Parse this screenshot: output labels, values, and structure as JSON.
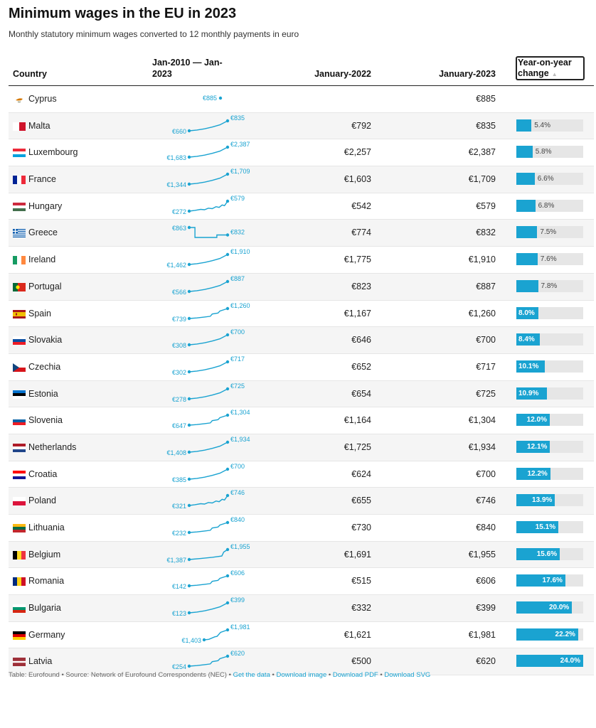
{
  "header": {
    "title": "Minimum wages in the EU in 2023",
    "subtitle": "Monthly statutory minimum wages converted to 12 monthly payments in euro"
  },
  "columns": {
    "country": "Country",
    "spark": "Jan-2010 — Jan-2023",
    "jan2022": "January-2022",
    "jan2023": "January-2023",
    "yoy": "Year-on-year change",
    "yoy_sort_icon": "sort-arrow-up-icon"
  },
  "colors": {
    "accent": "#1aa3d1",
    "track": "#e6e6e6",
    "row_alt": "#f5f5f5"
  },
  "chart_data": {
    "type": "table",
    "title": "Minimum wages in the EU in 2023",
    "subtitle": "Monthly statutory minimum wages converted to 12 monthly payments in euro",
    "yoy_scale_max": 24.0,
    "rows": [
      {
        "country": "Cyprus",
        "flag": "cyprus-flag-icon",
        "spark_start": "",
        "spark_end": "€885",
        "spark_shape": "single",
        "jan2022": "",
        "jan2023": "€885",
        "yoy": null,
        "yoy_label": ""
      },
      {
        "country": "Malta",
        "flag": "malta-flag-icon",
        "spark_start": "€660",
        "spark_end": "€835",
        "spark_shape": "rise",
        "jan2022": "€792",
        "jan2023": "€835",
        "yoy": 5.4,
        "yoy_label": "5.4%"
      },
      {
        "country": "Luxembourg",
        "flag": "luxembourg-flag-icon",
        "spark_start": "€1,683",
        "spark_end": "€2,387",
        "spark_shape": "rise",
        "jan2022": "€2,257",
        "jan2023": "€2,387",
        "yoy": 5.8,
        "yoy_label": "5.8%"
      },
      {
        "country": "France",
        "flag": "france-flag-icon",
        "spark_start": "€1,344",
        "spark_end": "€1,709",
        "spark_shape": "rise",
        "jan2022": "€1,603",
        "jan2023": "€1,709",
        "yoy": 6.6,
        "yoy_label": "6.6%"
      },
      {
        "country": "Hungary",
        "flag": "hungary-flag-icon",
        "spark_start": "€272",
        "spark_end": "€579",
        "spark_shape": "jagged",
        "jan2022": "€542",
        "jan2023": "€579",
        "yoy": 6.8,
        "yoy_label": "6.8%"
      },
      {
        "country": "Greece",
        "flag": "greece-flag-icon",
        "spark_start": "€863",
        "spark_end": "€832",
        "spark_shape": "step-dip",
        "jan2022": "€774",
        "jan2023": "€832",
        "yoy": 7.5,
        "yoy_label": "7.5%"
      },
      {
        "country": "Ireland",
        "flag": "ireland-flag-icon",
        "spark_start": "€1,462",
        "spark_end": "€1,910",
        "spark_shape": "rise",
        "jan2022": "€1,775",
        "jan2023": "€1,910",
        "yoy": 7.6,
        "yoy_label": "7.6%"
      },
      {
        "country": "Portugal",
        "flag": "portugal-flag-icon",
        "spark_start": "€566",
        "spark_end": "€887",
        "spark_shape": "rise",
        "jan2022": "€823",
        "jan2023": "€887",
        "yoy": 7.8,
        "yoy_label": "7.8%"
      },
      {
        "country": "Spain",
        "flag": "spain-flag-icon",
        "spark_start": "€739",
        "spark_end": "€1,260",
        "spark_shape": "step-rise",
        "jan2022": "€1,167",
        "jan2023": "€1,260",
        "yoy": 8.0,
        "yoy_label": "8.0%"
      },
      {
        "country": "Slovakia",
        "flag": "slovakia-flag-icon",
        "spark_start": "€308",
        "spark_end": "€700",
        "spark_shape": "rise",
        "jan2022": "€646",
        "jan2023": "€700",
        "yoy": 8.4,
        "yoy_label": "8.4%"
      },
      {
        "country": "Czechia",
        "flag": "czechia-flag-icon",
        "spark_start": "€302",
        "spark_end": "€717",
        "spark_shape": "rise",
        "jan2022": "€652",
        "jan2023": "€717",
        "yoy": 10.1,
        "yoy_label": "10.1%"
      },
      {
        "country": "Estonia",
        "flag": "estonia-flag-icon",
        "spark_start": "€278",
        "spark_end": "€725",
        "spark_shape": "rise",
        "jan2022": "€654",
        "jan2023": "€725",
        "yoy": 10.9,
        "yoy_label": "10.9%"
      },
      {
        "country": "Slovenia",
        "flag": "slovenia-flag-icon",
        "spark_start": "€647",
        "spark_end": "€1,304",
        "spark_shape": "step-rise",
        "jan2022": "€1,164",
        "jan2023": "€1,304",
        "yoy": 12.0,
        "yoy_label": "12.0%"
      },
      {
        "country": "Netherlands",
        "flag": "netherlands-flag-icon",
        "spark_start": "€1,408",
        "spark_end": "€1,934",
        "spark_shape": "rise",
        "jan2022": "€1,725",
        "jan2023": "€1,934",
        "yoy": 12.1,
        "yoy_label": "12.1%"
      },
      {
        "country": "Croatia",
        "flag": "croatia-flag-icon",
        "spark_start": "€385",
        "spark_end": "€700",
        "spark_shape": "rise",
        "jan2022": "€624",
        "jan2023": "€700",
        "yoy": 12.2,
        "yoy_label": "12.2%"
      },
      {
        "country": "Poland",
        "flag": "poland-flag-icon",
        "spark_start": "€321",
        "spark_end": "€746",
        "spark_shape": "jagged",
        "jan2022": "€655",
        "jan2023": "€746",
        "yoy": 13.9,
        "yoy_label": "13.9%"
      },
      {
        "country": "Lithuania",
        "flag": "lithuania-flag-icon",
        "spark_start": "€232",
        "spark_end": "€840",
        "spark_shape": "step-rise",
        "jan2022": "€730",
        "jan2023": "€840",
        "yoy": 15.1,
        "yoy_label": "15.1%"
      },
      {
        "country": "Belgium",
        "flag": "belgium-flag-icon",
        "spark_start": "€1,387",
        "spark_end": "€1,955",
        "spark_shape": "late-rise",
        "jan2022": "€1,691",
        "jan2023": "€1,955",
        "yoy": 15.6,
        "yoy_label": "15.6%"
      },
      {
        "country": "Romania",
        "flag": "romania-flag-icon",
        "spark_start": "€142",
        "spark_end": "€606",
        "spark_shape": "step-rise",
        "jan2022": "€515",
        "jan2023": "€606",
        "yoy": 17.6,
        "yoy_label": "17.6%"
      },
      {
        "country": "Bulgaria",
        "flag": "bulgaria-flag-icon",
        "spark_start": "€123",
        "spark_end": "€399",
        "spark_shape": "rise",
        "jan2022": "€332",
        "jan2023": "€399",
        "yoy": 20.0,
        "yoy_label": "20.0%"
      },
      {
        "country": "Germany",
        "flag": "germany-flag-icon",
        "spark_start": "€1,403",
        "spark_end": "€1,981",
        "spark_shape": "late-start",
        "jan2022": "€1,621",
        "jan2023": "€1,981",
        "yoy": 22.2,
        "yoy_label": "22.2%"
      },
      {
        "country": "Latvia",
        "flag": "latvia-flag-icon",
        "spark_start": "€254",
        "spark_end": "€620",
        "spark_shape": "step-rise",
        "jan2022": "€500",
        "jan2023": "€620",
        "yoy": 24.0,
        "yoy_label": "24.0%"
      }
    ]
  },
  "footer": {
    "prefix": "Table: Eurofound • Source: Network of Eurofound Correspondents (NEC) •",
    "links": [
      "Get the data",
      "Download image",
      "Download PDF",
      "Download SVG"
    ],
    "separator": "•"
  }
}
